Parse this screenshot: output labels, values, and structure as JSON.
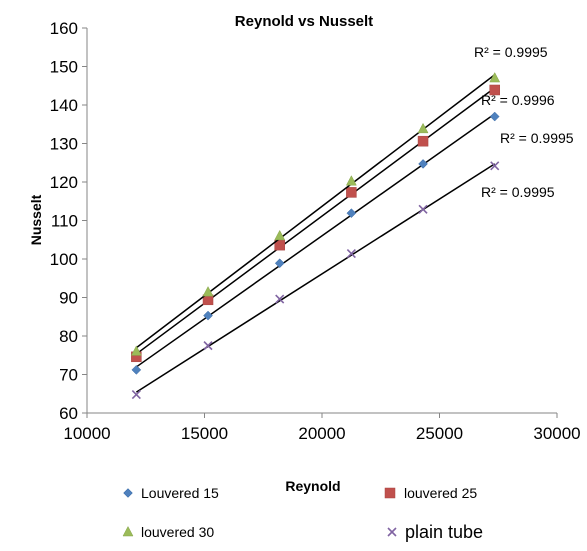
{
  "chart_data": {
    "type": "scatter",
    "title": "Reynold vs Nusselt",
    "xlabel": "Reynold",
    "ylabel": "Nusselt",
    "xlim": [
      10000,
      30000
    ],
    "ylim": [
      60,
      160
    ],
    "xticks": [
      10000,
      15000,
      20000,
      25000,
      30000
    ],
    "yticks": [
      60,
      70,
      80,
      90,
      100,
      110,
      120,
      130,
      140,
      150,
      160
    ],
    "grid": false,
    "legend_position": "bottom",
    "series": [
      {
        "name": "Louvered 15",
        "marker": "diamond",
        "color": "#4f81bd",
        "x": [
          12100,
          15150,
          18200,
          21250,
          24300,
          27350
        ],
        "y": [
          71.2,
          85.3,
          98.9,
          111.9,
          124.7,
          137.0
        ],
        "trendline": "linear",
        "r2_label": "R² = 0.9995"
      },
      {
        "name": "louvered 25",
        "marker": "square",
        "color": "#c0504d",
        "x": [
          12100,
          15150,
          18200,
          21250,
          24300,
          27350
        ],
        "y": [
          74.6,
          89.4,
          103.6,
          117.3,
          130.6,
          143.9
        ],
        "trendline": "linear",
        "r2_label": "R² = 0.9996"
      },
      {
        "name": "louvered 30",
        "marker": "triangle",
        "color": "#9bbb59",
        "x": [
          12100,
          15150,
          18200,
          21250,
          24300,
          27350
        ],
        "y": [
          76.0,
          91.4,
          106.0,
          120.2,
          133.8,
          147.0
        ],
        "trendline": "linear",
        "r2_label": "R² = 0.9995"
      },
      {
        "name": "plain tube",
        "marker": "x",
        "color": "#8064a2",
        "x": [
          12100,
          15150,
          18200,
          21250,
          24300,
          27350
        ],
        "y": [
          64.8,
          77.5,
          89.6,
          101.4,
          112.9,
          124.2
        ],
        "trendline": "linear",
        "r2_label": "R² = 0.9995"
      }
    ]
  }
}
